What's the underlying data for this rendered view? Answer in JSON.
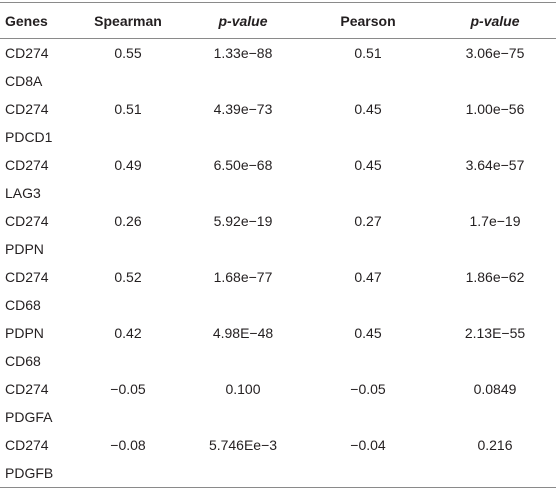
{
  "table": {
    "header": [
      "Genes",
      "Spearman",
      "p-value",
      "Pearson",
      "p-value"
    ],
    "rows": [
      [
        [
          "CD274",
          "CD8A"
        ],
        "0.55",
        "1.33e−88",
        "0.51",
        "3.06e−75"
      ],
      [
        [
          "CD274",
          "PDCD1"
        ],
        "0.51",
        "4.39e−73",
        "0.45",
        "1.00e−56"
      ],
      [
        [
          "CD274",
          "LAG3"
        ],
        "0.49",
        "6.50e−68",
        "0.45",
        "3.64e−57"
      ],
      [
        [
          "CD274",
          "PDPN"
        ],
        "0.26",
        "5.92e−19",
        "0.27",
        "1.7e−19"
      ],
      [
        [
          "CD274",
          "CD68"
        ],
        "0.52",
        "1.68e−77",
        "0.47",
        "1.86e−62"
      ],
      [
        [
          "PDPN",
          "CD68"
        ],
        "0.42",
        "4.98E−48",
        "0.45",
        "2.13E−55"
      ],
      [
        [
          "CD274",
          "PDGFA"
        ],
        "−0.05",
        "0.100",
        "−0.05",
        "0.0849"
      ],
      [
        [
          "CD274",
          "PDGFB"
        ],
        "−0.08",
        "5.746Ee−3",
        "−0.04",
        "0.216"
      ]
    ]
  }
}
